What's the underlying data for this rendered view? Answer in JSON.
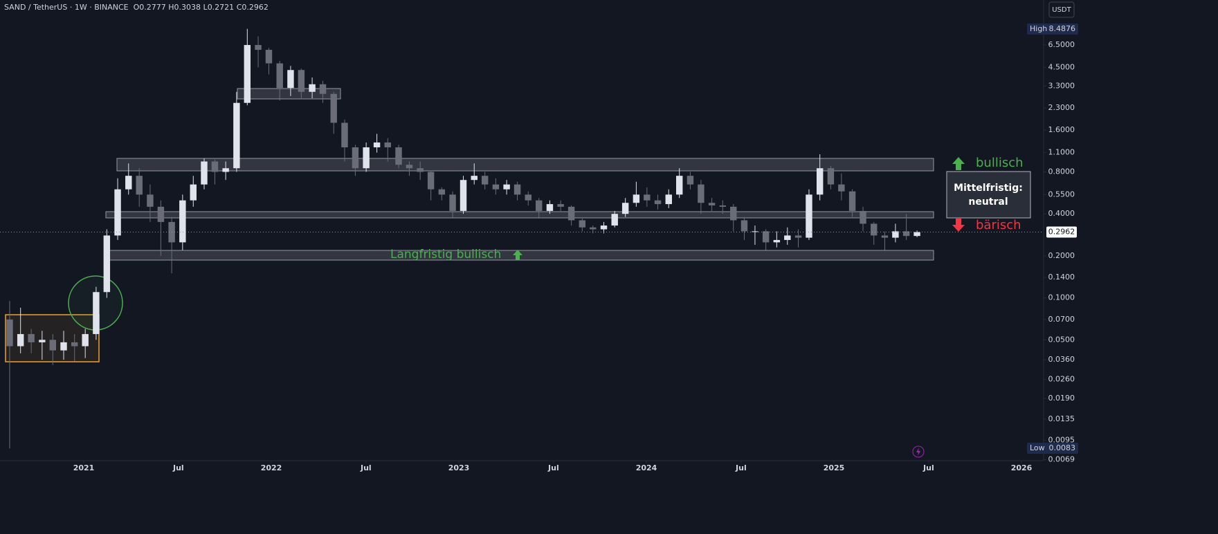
{
  "header": {
    "symbol": "SAND / TetherUS · 1W · BINANCE",
    "ohlc_labels": [
      "O",
      "H",
      "L",
      "C"
    ],
    "currency": "USDT"
  },
  "chart_data": {
    "type": "candlestick",
    "x": [
      2020.605,
      2020.663,
      2020.72,
      2020.778,
      2020.835,
      2020.893,
      2020.951,
      2021.008,
      2021.066,
      2021.123,
      2021.181,
      2021.239,
      2021.296,
      2021.354,
      2021.411,
      2021.469,
      2021.527,
      2021.584,
      2021.642,
      2021.699,
      2021.757,
      2021.815,
      2021.872,
      2021.93,
      2021.987,
      2022.045,
      2022.103,
      2022.16,
      2022.218,
      2022.275,
      2022.333,
      2022.391,
      2022.448,
      2022.506,
      2022.563,
      2022.621,
      2022.679,
      2022.736,
      2022.794,
      2022.851,
      2022.909,
      2022.967,
      2023.024,
      2023.082,
      2023.139,
      2023.197,
      2023.255,
      2023.312,
      2023.37,
      2023.427,
      2023.485,
      2023.543,
      2023.6,
      2023.658,
      2023.715,
      2023.773,
      2023.831,
      2023.888,
      2023.946,
      2024.003,
      2024.061,
      2024.119,
      2024.176,
      2024.234,
      2024.291,
      2024.349,
      2024.407,
      2024.464,
      2024.522,
      2024.579,
      2024.637,
      2024.695,
      2024.752,
      2024.81,
      2024.867,
      2024.925,
      2024.983,
      2025.04,
      2025.098,
      2025.155,
      2025.213,
      2025.271,
      2025.328,
      2025.386,
      2025.443
    ],
    "open": [
      0.07,
      0.045,
      0.055,
      0.048,
      0.05,
      0.042,
      0.048,
      0.045,
      0.055,
      0.11,
      0.28,
      0.6,
      0.75,
      0.55,
      0.45,
      0.35,
      0.25,
      0.5,
      0.65,
      0.95,
      0.8,
      0.85,
      2.5,
      6.5,
      6.0,
      4.8,
      3.2,
      4.3,
      3.0,
      3.4,
      2.9,
      1.8,
      1.2,
      0.85,
      1.2,
      1.3,
      1.2,
      0.9,
      0.85,
      0.8,
      0.6,
      0.55,
      0.42,
      0.7,
      0.75,
      0.65,
      0.6,
      0.65,
      0.55,
      0.5,
      0.42,
      0.47,
      0.45,
      0.36,
      0.32,
      0.31,
      0.33,
      0.4,
      0.48,
      0.55,
      0.5,
      0.47,
      0.55,
      0.75,
      0.65,
      0.48,
      0.46,
      0.45,
      0.36,
      0.3,
      0.3,
      0.25,
      0.26,
      0.28,
      0.27,
      0.55,
      0.85,
      0.65,
      0.58,
      0.42,
      0.34,
      0.28,
      0.27,
      0.3,
      0.2777
    ],
    "high": [
      0.095,
      0.085,
      0.06,
      0.058,
      0.055,
      0.058,
      0.055,
      0.06,
      0.12,
      0.31,
      0.72,
      0.92,
      0.85,
      0.65,
      0.5,
      0.38,
      0.55,
      0.75,
      1.0,
      0.98,
      0.95,
      3.0,
      8.4876,
      7.5,
      6.2,
      5.0,
      4.6,
      4.4,
      3.8,
      3.6,
      3.0,
      1.9,
      1.25,
      1.3,
      1.5,
      1.4,
      1.25,
      0.95,
      0.95,
      0.82,
      0.62,
      0.58,
      0.75,
      0.92,
      0.8,
      0.72,
      0.7,
      0.68,
      0.58,
      0.52,
      0.5,
      0.5,
      0.46,
      0.37,
      0.33,
      0.35,
      0.42,
      0.52,
      0.68,
      0.62,
      0.55,
      0.6,
      0.85,
      0.8,
      0.7,
      0.52,
      0.5,
      0.47,
      0.38,
      0.33,
      0.31,
      0.3,
      0.32,
      0.31,
      0.6,
      1.07,
      0.88,
      0.78,
      0.6,
      0.45,
      0.35,
      0.3,
      0.34,
      0.4,
      0.3038
    ],
    "low": [
      0.0083,
      0.04,
      0.04,
      0.036,
      0.033,
      0.036,
      0.035,
      0.037,
      0.05,
      0.1,
      0.26,
      0.55,
      0.45,
      0.35,
      0.2,
      0.15,
      0.22,
      0.45,
      0.6,
      0.65,
      0.7,
      0.8,
      2.4,
      4.5,
      4.0,
      2.6,
      2.8,
      2.7,
      2.7,
      2.5,
      1.5,
      0.95,
      0.75,
      0.8,
      1.1,
      0.95,
      0.85,
      0.75,
      0.7,
      0.5,
      0.5,
      0.37,
      0.4,
      0.65,
      0.6,
      0.55,
      0.55,
      0.5,
      0.46,
      0.37,
      0.4,
      0.42,
      0.33,
      0.3,
      0.29,
      0.29,
      0.32,
      0.38,
      0.45,
      0.45,
      0.43,
      0.44,
      0.52,
      0.6,
      0.4,
      0.42,
      0.4,
      0.3,
      0.26,
      0.24,
      0.22,
      0.23,
      0.24,
      0.23,
      0.26,
      0.5,
      0.6,
      0.5,
      0.38,
      0.3,
      0.24,
      0.22,
      0.25,
      0.26,
      0.2721
    ],
    "close": [
      0.045,
      0.055,
      0.048,
      0.05,
      0.042,
      0.048,
      0.045,
      0.055,
      0.11,
      0.28,
      0.6,
      0.75,
      0.55,
      0.45,
      0.35,
      0.25,
      0.5,
      0.65,
      0.95,
      0.8,
      0.85,
      2.5,
      6.5,
      6.0,
      4.8,
      3.2,
      4.3,
      3.0,
      3.4,
      2.9,
      1.8,
      1.2,
      0.85,
      1.2,
      1.3,
      1.2,
      0.9,
      0.85,
      0.8,
      0.6,
      0.55,
      0.42,
      0.7,
      0.75,
      0.65,
      0.6,
      0.65,
      0.55,
      0.5,
      0.42,
      0.47,
      0.45,
      0.36,
      0.32,
      0.31,
      0.33,
      0.4,
      0.48,
      0.55,
      0.5,
      0.47,
      0.55,
      0.75,
      0.65,
      0.48,
      0.46,
      0.45,
      0.36,
      0.3,
      0.3,
      0.25,
      0.26,
      0.28,
      0.27,
      0.55,
      0.85,
      0.65,
      0.58,
      0.42,
      0.34,
      0.28,
      0.27,
      0.3,
      0.2777,
      0.2962
    ],
    "up_color": "#e0e3eb",
    "down_color": "#6a6d78",
    "log_scale": true,
    "grid": false,
    "xlim": [
      2020.5535,
      2026.118
    ],
    "ylim": [
      0.0068,
      9.7
    ],
    "xticks": [
      {
        "value": 2021,
        "label": "2021"
      },
      {
        "value": 2021.505,
        "label": "Jul"
      },
      {
        "value": 2022,
        "label": "2022"
      },
      {
        "value": 2022.505,
        "label": "Jul"
      },
      {
        "value": 2023,
        "label": "2023"
      },
      {
        "value": 2023.505,
        "label": "Jul"
      },
      {
        "value": 2024,
        "label": "2024"
      },
      {
        "value": 2024.505,
        "label": "Jul"
      },
      {
        "value": 2025,
        "label": "2025"
      },
      {
        "value": 2025.505,
        "label": "Jul"
      },
      {
        "value": 2026,
        "label": "2026"
      }
    ],
    "yticks": [
      {
        "value": 6.5,
        "label": "6.5000"
      },
      {
        "value": 4.5,
        "label": "4.5000"
      },
      {
        "value": 3.3,
        "label": "3.3000"
      },
      {
        "value": 2.3,
        "label": "2.3000"
      },
      {
        "value": 1.6,
        "label": "1.6000"
      },
      {
        "value": 1.1,
        "label": "1.1000"
      },
      {
        "value": 0.8,
        "label": "0.8000"
      },
      {
        "value": 0.55,
        "label": "0.5500"
      },
      {
        "value": 0.4,
        "label": "0.4000"
      },
      {
        "value": 0.2,
        "label": "0.2000"
      },
      {
        "value": 0.14,
        "label": "0.1400"
      },
      {
        "value": 0.1,
        "label": "0.1000"
      },
      {
        "value": 0.07,
        "label": "0.0700"
      },
      {
        "value": 0.05,
        "label": "0.0500"
      },
      {
        "value": 0.036,
        "label": "0.0360"
      },
      {
        "value": 0.026,
        "label": "0.0260"
      },
      {
        "value": 0.019,
        "label": "0.0190"
      },
      {
        "value": 0.0135,
        "label": "0.0135"
      },
      {
        "value": 0.0095,
        "label": "0.0095"
      },
      {
        "value": 0.0069,
        "label": "0.0069"
      }
    ],
    "high_label": "High",
    "low_label": "Low",
    "annotations": {
      "long_term": "Langfristig bullisch",
      "bullish": "bullisch",
      "bearish": "bärisch",
      "mid_term": [
        "Mittelfristig:",
        "neutral"
      ]
    }
  }
}
